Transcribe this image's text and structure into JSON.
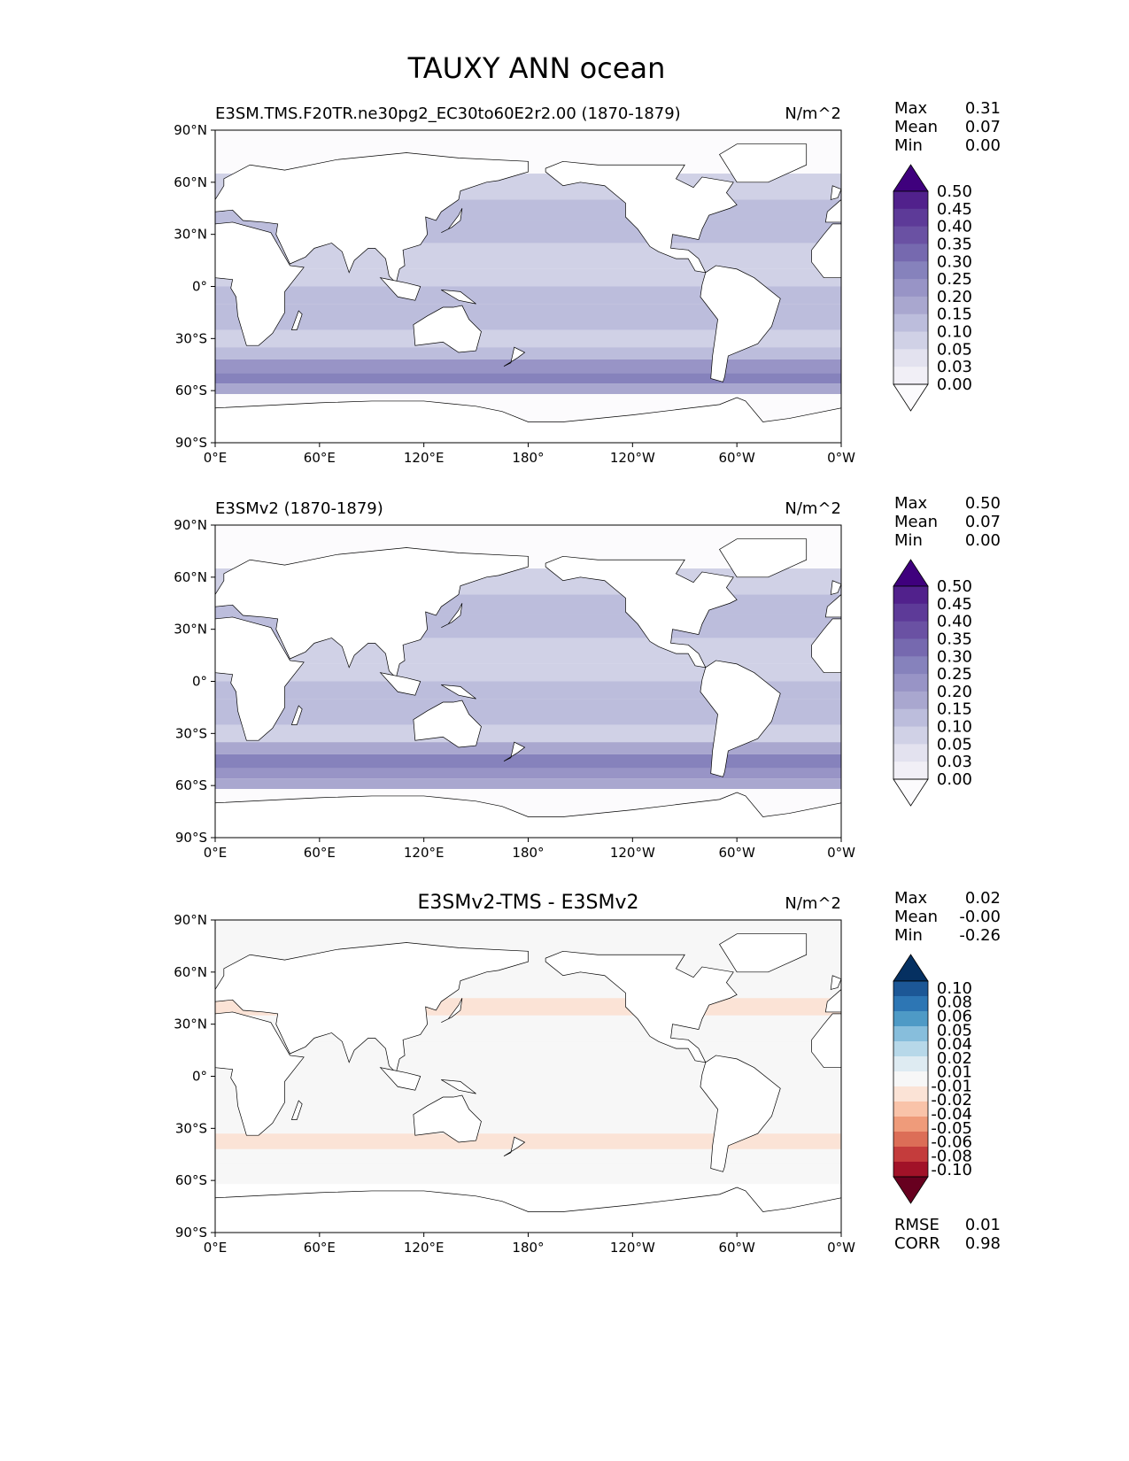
{
  "chart_data": {
    "type": "heatmap",
    "title": "TAUXY ANN ocean",
    "xticks": [
      "0°E",
      "60°E",
      "120°E",
      "180°",
      "120°W",
      "60°W",
      "0°W"
    ],
    "yticks": [
      "90°N",
      "60°N",
      "30°N",
      "0°",
      "30°S",
      "60°S",
      "90°S"
    ],
    "panels": [
      {
        "title": "E3SM.TMS.F20TR.ne30pg2_EC30to60E2r2.00 (1870-1879)",
        "title_align": "left",
        "units": "N/m^2",
        "stats": [
          [
            "Max",
            "0.31"
          ],
          [
            "Mean",
            "0.07"
          ],
          [
            "Min",
            "0.00"
          ]
        ],
        "cmap": "purples",
        "levels": [
          "0.50",
          "0.45",
          "0.40",
          "0.35",
          "0.30",
          "0.25",
          "0.20",
          "0.15",
          "0.10",
          "0.05",
          "0.03",
          "0.00"
        ],
        "bands": [
          [
            90,
            65,
            0.0
          ],
          [
            65,
            50,
            0.05
          ],
          [
            50,
            38,
            0.1
          ],
          [
            38,
            25,
            0.1
          ],
          [
            25,
            10,
            0.05
          ],
          [
            10,
            0,
            0.05
          ],
          [
            0,
            -10,
            0.1
          ],
          [
            -10,
            -25,
            0.1
          ],
          [
            -25,
            -35,
            0.05
          ],
          [
            -35,
            -42,
            0.1
          ],
          [
            -42,
            -50,
            0.2
          ],
          [
            -50,
            -56,
            0.25
          ],
          [
            -56,
            -62,
            0.15
          ],
          [
            -62,
            -90,
            0.0
          ]
        ]
      },
      {
        "title": "E3SMv2 (1870-1879)",
        "title_align": "left",
        "units": "N/m^2",
        "stats": [
          [
            "Max",
            "0.50"
          ],
          [
            "Mean",
            "0.07"
          ],
          [
            "Min",
            "0.00"
          ]
        ],
        "cmap": "purples",
        "levels": [
          "0.50",
          "0.45",
          "0.40",
          "0.35",
          "0.30",
          "0.25",
          "0.20",
          "0.15",
          "0.10",
          "0.05",
          "0.03",
          "0.00"
        ],
        "bands": [
          [
            90,
            65,
            0.0
          ],
          [
            65,
            50,
            0.05
          ],
          [
            50,
            38,
            0.1
          ],
          [
            38,
            25,
            0.1
          ],
          [
            25,
            10,
            0.05
          ],
          [
            10,
            0,
            0.05
          ],
          [
            0,
            -10,
            0.1
          ],
          [
            -10,
            -25,
            0.1
          ],
          [
            -25,
            -35,
            0.05
          ],
          [
            -35,
            -42,
            0.15
          ],
          [
            -42,
            -50,
            0.25
          ],
          [
            -50,
            -56,
            0.2
          ],
          [
            -56,
            -62,
            0.15
          ],
          [
            -62,
            -90,
            0.0
          ]
        ]
      },
      {
        "title": "E3SMv2-TMS - E3SMv2",
        "title_align": "center",
        "units": "N/m^2",
        "stats": [
          [
            "Max",
            "0.02"
          ],
          [
            "Mean",
            "-0.00"
          ],
          [
            "Min",
            "-0.26"
          ]
        ],
        "cmap": "rdbu",
        "levels": [
          "0.10",
          "0.08",
          "0.06",
          "0.05",
          "0.04",
          "0.02",
          "0.01",
          "-0.01",
          "-0.02",
          "-0.04",
          "-0.05",
          "-0.06",
          "-0.08",
          "-0.10"
        ],
        "bands": [
          [
            90,
            65,
            0.0
          ],
          [
            65,
            45,
            0.0
          ],
          [
            45,
            35,
            -0.01
          ],
          [
            35,
            20,
            0.0
          ],
          [
            20,
            -25,
            0.0
          ],
          [
            -25,
            -33,
            0.0
          ],
          [
            -33,
            -42,
            -0.01
          ],
          [
            -42,
            -50,
            0.0
          ],
          [
            -50,
            -56,
            0.01
          ],
          [
            -56,
            -62,
            0.0
          ],
          [
            -62,
            -90,
            null
          ]
        ],
        "extra_stats": [
          [
            "RMSE",
            "0.01"
          ],
          [
            "CORR",
            "0.98"
          ]
        ]
      }
    ]
  }
}
